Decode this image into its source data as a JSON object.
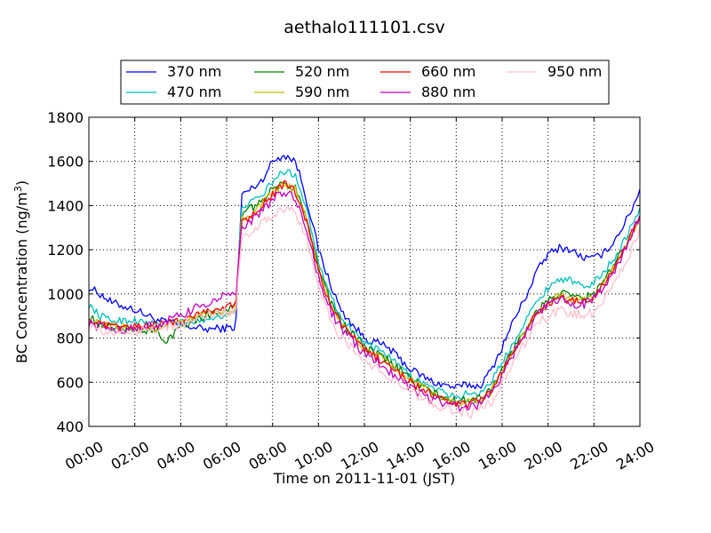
{
  "chart_data": {
    "type": "line",
    "title": "aethalo111101.csv",
    "xlabel": "Time on 2011-11-01 (JST)",
    "ylabel": "BC Concentration (ng/m",
    "ylabel_sup": "3",
    "ylabel_close": ")",
    "xlim": [
      0,
      24
    ],
    "ylim": [
      400,
      1800
    ],
    "x_tick_values": [
      0,
      2,
      4,
      6,
      8,
      10,
      12,
      14,
      16,
      18,
      20,
      22,
      24
    ],
    "x_tick_labels": [
      "00:00",
      "02:00",
      "04:00",
      "06:00",
      "08:00",
      "10:00",
      "12:00",
      "14:00",
      "16:00",
      "18:00",
      "20:00",
      "22:00",
      "24:00"
    ],
    "y_ticks": [
      400,
      600,
      800,
      1000,
      1200,
      1400,
      1600,
      1800
    ],
    "grid": true,
    "legend_placement": "top-center",
    "legend_columns": 4,
    "sample_interval_hours": 0.0833,
    "series": [
      {
        "name": "370 nm",
        "color": "#0000ff",
        "noise": 18,
        "anchors": [
          [
            0,
            1030
          ],
          [
            0.5,
            1000
          ],
          [
            1,
            960
          ],
          [
            2,
            930
          ],
          [
            3,
            880
          ],
          [
            4,
            860
          ],
          [
            5,
            840
          ],
          [
            6,
            845
          ],
          [
            6.4,
            850
          ],
          [
            6.65,
            1450
          ],
          [
            7,
            1470
          ],
          [
            7.5,
            1510
          ],
          [
            8,
            1600
          ],
          [
            8.5,
            1630
          ],
          [
            9,
            1600
          ],
          [
            9.3,
            1500
          ],
          [
            9.6,
            1380
          ],
          [
            10,
            1200
          ],
          [
            10.5,
            1050
          ],
          [
            11,
            920
          ],
          [
            12,
            800
          ],
          [
            13,
            760
          ],
          [
            14,
            660
          ],
          [
            15,
            600
          ],
          [
            16,
            575
          ],
          [
            16.5,
            590
          ],
          [
            17,
            580
          ],
          [
            17.5,
            650
          ],
          [
            18,
            760
          ],
          [
            18.5,
            880
          ],
          [
            19,
            980
          ],
          [
            19.5,
            1100
          ],
          [
            20,
            1180
          ],
          [
            20.5,
            1210
          ],
          [
            21,
            1200
          ],
          [
            21.5,
            1165
          ],
          [
            22,
            1160
          ],
          [
            22.5,
            1190
          ],
          [
            23,
            1260
          ],
          [
            23.5,
            1350
          ],
          [
            24,
            1470
          ]
        ]
      },
      {
        "name": "470 nm",
        "color": "#00bfbf",
        "noise": 16,
        "anchors": [
          [
            0,
            950
          ],
          [
            0.5,
            900
          ],
          [
            1,
            880
          ],
          [
            2,
            880
          ],
          [
            3,
            860
          ],
          [
            4,
            870
          ],
          [
            5,
            880
          ],
          [
            6,
            910
          ],
          [
            6.4,
            910
          ],
          [
            6.65,
            1400
          ],
          [
            7,
            1410
          ],
          [
            7.5,
            1440
          ],
          [
            8,
            1510
          ],
          [
            8.5,
            1555
          ],
          [
            9,
            1540
          ],
          [
            9.5,
            1380
          ],
          [
            10,
            1150
          ],
          [
            10.5,
            1000
          ],
          [
            11,
            890
          ],
          [
            12,
            780
          ],
          [
            13,
            720
          ],
          [
            14,
            630
          ],
          [
            15,
            570
          ],
          [
            16,
            530
          ],
          [
            16.5,
            550
          ],
          [
            17,
            550
          ],
          [
            17.5,
            600
          ],
          [
            18,
            690
          ],
          [
            18.5,
            780
          ],
          [
            19,
            880
          ],
          [
            19.5,
            960
          ],
          [
            20,
            1030
          ],
          [
            20.5,
            1070
          ],
          [
            21,
            1060
          ],
          [
            21.5,
            1030
          ],
          [
            22,
            1050
          ],
          [
            22.5,
            1110
          ],
          [
            23,
            1180
          ],
          [
            23.5,
            1280
          ],
          [
            24,
            1380
          ]
        ]
      },
      {
        "name": "520 nm",
        "color": "#008000",
        "noise": 20,
        "anchors": [
          [
            0,
            900
          ],
          [
            0.5,
            860
          ],
          [
            1,
            850
          ],
          [
            2,
            840
          ],
          [
            3,
            830
          ],
          [
            3.3,
            770
          ],
          [
            4,
            860
          ],
          [
            5,
            900
          ],
          [
            6,
            930
          ],
          [
            6.4,
            940
          ],
          [
            6.65,
            1360
          ],
          [
            7,
            1380
          ],
          [
            7.5,
            1420
          ],
          [
            8,
            1470
          ],
          [
            8.5,
            1500
          ],
          [
            9,
            1480
          ],
          [
            9.5,
            1340
          ],
          [
            10,
            1120
          ],
          [
            10.5,
            970
          ],
          [
            11,
            870
          ],
          [
            12,
            760
          ],
          [
            13,
            700
          ],
          [
            14,
            620
          ],
          [
            15,
            550
          ],
          [
            16,
            510
          ],
          [
            16.5,
            520
          ],
          [
            17,
            530
          ],
          [
            17.5,
            560
          ],
          [
            18,
            660
          ],
          [
            18.5,
            750
          ],
          [
            19,
            840
          ],
          [
            19.5,
            920
          ],
          [
            20,
            970
          ],
          [
            20.5,
            1000
          ],
          [
            21,
            990
          ],
          [
            21.5,
            980
          ],
          [
            22,
            1000
          ],
          [
            22.5,
            1070
          ],
          [
            23,
            1150
          ],
          [
            23.5,
            1250
          ],
          [
            24,
            1360
          ]
        ]
      },
      {
        "name": "590 nm",
        "color": "#bfbf00",
        "noise": 18,
        "anchors": [
          [
            0,
            880
          ],
          [
            0.5,
            860
          ],
          [
            1,
            850
          ],
          [
            2,
            850
          ],
          [
            3,
            840
          ],
          [
            4,
            870
          ],
          [
            5,
            910
          ],
          [
            6,
            920
          ],
          [
            6.4,
            930
          ],
          [
            6.65,
            1340
          ],
          [
            7,
            1360
          ],
          [
            7.5,
            1400
          ],
          [
            8,
            1460
          ],
          [
            8.5,
            1495
          ],
          [
            9,
            1470
          ],
          [
            9.5,
            1330
          ],
          [
            10,
            1110
          ],
          [
            10.5,
            960
          ],
          [
            11,
            860
          ],
          [
            12,
            750
          ],
          [
            13,
            690
          ],
          [
            14,
            610
          ],
          [
            15,
            545
          ],
          [
            16,
            505
          ],
          [
            16.5,
            510
          ],
          [
            17,
            520
          ],
          [
            17.5,
            555
          ],
          [
            18,
            650
          ],
          [
            18.5,
            740
          ],
          [
            19,
            830
          ],
          [
            19.5,
            910
          ],
          [
            20,
            960
          ],
          [
            20.5,
            990
          ],
          [
            21,
            980
          ],
          [
            21.5,
            970
          ],
          [
            22,
            990
          ],
          [
            22.5,
            1060
          ],
          [
            23,
            1140
          ],
          [
            23.5,
            1240
          ],
          [
            24,
            1350
          ]
        ]
      },
      {
        "name": "660 nm",
        "color": "#ff0000",
        "noise": 18,
        "anchors": [
          [
            0,
            880
          ],
          [
            0.5,
            860
          ],
          [
            1,
            850
          ],
          [
            2,
            850
          ],
          [
            3,
            860
          ],
          [
            4,
            880
          ],
          [
            5,
            920
          ],
          [
            6,
            940
          ],
          [
            6.4,
            950
          ],
          [
            6.65,
            1330
          ],
          [
            7,
            1350
          ],
          [
            7.5,
            1400
          ],
          [
            8,
            1450
          ],
          [
            8.5,
            1500
          ],
          [
            9,
            1460
          ],
          [
            9.5,
            1320
          ],
          [
            10,
            1100
          ],
          [
            10.5,
            950
          ],
          [
            11,
            860
          ],
          [
            12,
            750
          ],
          [
            13,
            680
          ],
          [
            14,
            600
          ],
          [
            15,
            540
          ],
          [
            16,
            500
          ],
          [
            16.5,
            500
          ],
          [
            17,
            520
          ],
          [
            17.5,
            550
          ],
          [
            18,
            650
          ],
          [
            18.5,
            740
          ],
          [
            19,
            830
          ],
          [
            19.5,
            910
          ],
          [
            20,
            960
          ],
          [
            20.5,
            980
          ],
          [
            21,
            970
          ],
          [
            21.5,
            960
          ],
          [
            22,
            990
          ],
          [
            22.5,
            1060
          ],
          [
            23,
            1140
          ],
          [
            23.5,
            1240
          ],
          [
            24,
            1360
          ]
        ]
      },
      {
        "name": "880 nm",
        "color": "#bf00bf",
        "noise": 22,
        "anchors": [
          [
            0,
            870
          ],
          [
            0.5,
            850
          ],
          [
            1,
            840
          ],
          [
            2,
            840
          ],
          [
            3,
            860
          ],
          [
            4,
            900
          ],
          [
            5,
            950
          ],
          [
            6,
            1000
          ],
          [
            6.4,
            980
          ],
          [
            6.65,
            1310
          ],
          [
            7,
            1320
          ],
          [
            7.5,
            1370
          ],
          [
            8,
            1430
          ],
          [
            8.5,
            1460
          ],
          [
            9,
            1430
          ],
          [
            9.5,
            1280
          ],
          [
            10,
            1080
          ],
          [
            10.5,
            930
          ],
          [
            11,
            840
          ],
          [
            12,
            730
          ],
          [
            13,
            660
          ],
          [
            14,
            580
          ],
          [
            15,
            520
          ],
          [
            16,
            490
          ],
          [
            16.5,
            485
          ],
          [
            17,
            500
          ],
          [
            17.5,
            540
          ],
          [
            18,
            640
          ],
          [
            18.5,
            730
          ],
          [
            19,
            820
          ],
          [
            19.5,
            900
          ],
          [
            20,
            950
          ],
          [
            20.5,
            970
          ],
          [
            21,
            960
          ],
          [
            21.5,
            950
          ],
          [
            22,
            980
          ],
          [
            22.5,
            1050
          ],
          [
            23,
            1130
          ],
          [
            23.5,
            1230
          ],
          [
            24,
            1350
          ]
        ]
      },
      {
        "name": "950 nm",
        "color": "#ffc0cb",
        "noise": 24,
        "anchors": [
          [
            0,
            860
          ],
          [
            0.5,
            830
          ],
          [
            1,
            820
          ],
          [
            2,
            830
          ],
          [
            3,
            840
          ],
          [
            4,
            860
          ],
          [
            5,
            900
          ],
          [
            6,
            920
          ],
          [
            6.4,
            920
          ],
          [
            6.65,
            1260
          ],
          [
            7,
            1280
          ],
          [
            7.5,
            1320
          ],
          [
            8,
            1360
          ],
          [
            8.5,
            1390
          ],
          [
            9,
            1370
          ],
          [
            9.5,
            1240
          ],
          [
            10,
            1030
          ],
          [
            10.5,
            890
          ],
          [
            11,
            800
          ],
          [
            12,
            700
          ],
          [
            13,
            630
          ],
          [
            14,
            560
          ],
          [
            15,
            500
          ],
          [
            16,
            470
          ],
          [
            16.5,
            460
          ],
          [
            17,
            470
          ],
          [
            17.5,
            500
          ],
          [
            18,
            600
          ],
          [
            18.5,
            690
          ],
          [
            19,
            780
          ],
          [
            19.5,
            860
          ],
          [
            20,
            900
          ],
          [
            20.5,
            920
          ],
          [
            21,
            910
          ],
          [
            21.5,
            900
          ],
          [
            22,
            920
          ],
          [
            22.5,
            990
          ],
          [
            23,
            1070
          ],
          [
            23.5,
            1170
          ],
          [
            24,
            1290
          ]
        ]
      }
    ]
  }
}
